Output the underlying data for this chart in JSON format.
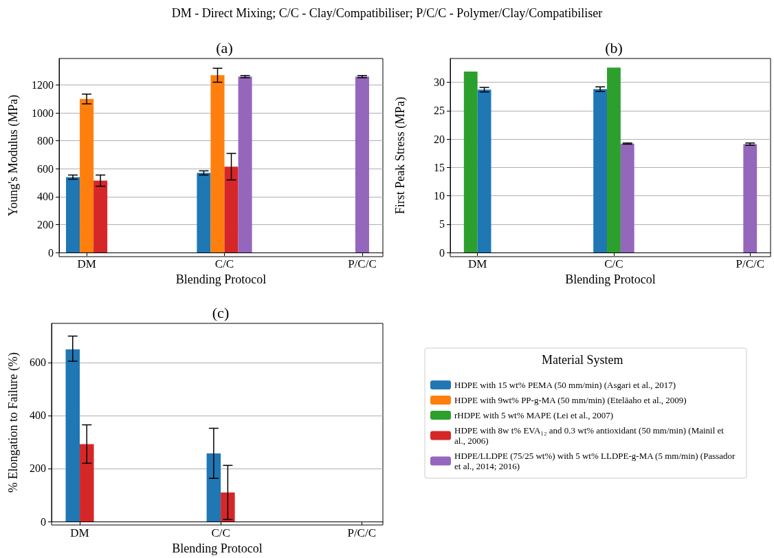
{
  "chart_data": [
    {
      "type": "bar",
      "title": "(a)",
      "annotations": [
        "DM - Direct Mixing; C/C - Clay/Compatibiliser; P/C/C - Polymer/Clay/Compatibiliser"
      ],
      "xlabel": "Blending Protocol",
      "ylabel": "Young's Modulus (MPa)",
      "categories": [
        "DM",
        "C/C",
        "P/C/C"
      ],
      "ylim": [
        0,
        1390
      ],
      "yticks": [
        0,
        200,
        400,
        600,
        800,
        1000,
        1200
      ],
      "grid": "y",
      "legend": false,
      "series": [
        {
          "color": "#1f77b4",
          "values": [
            540,
            570,
            null
          ],
          "errors": [
            15,
            15,
            null
          ]
        },
        {
          "color": "#ff7f0e",
          "values": [
            1100,
            1270,
            null
          ],
          "errors": [
            35,
            50,
            null
          ]
        },
        {
          "color": "#d62728",
          "values": [
            515,
            615,
            null
          ],
          "errors": [
            40,
            95,
            null
          ]
        },
        {
          "color": "#9467bd",
          "values": [
            null,
            1260,
            1260
          ],
          "errors": [
            null,
            8,
            8
          ]
        }
      ]
    },
    {
      "type": "bar",
      "title": "(b)",
      "xlabel": "Blending Protocol",
      "ylabel": "First Peak Stress (MPa)",
      "categories": [
        "DM",
        "C/C",
        "P/C/C"
      ],
      "ylim": [
        0,
        34.2
      ],
      "yticks": [
        0,
        5,
        10,
        15,
        20,
        25,
        30
      ],
      "grid": "y",
      "legend": false,
      "series": [
        {
          "color": "#2ca02c",
          "values": [
            31.9,
            null,
            null
          ]
        },
        {
          "color": "#1f77b4",
          "values": [
            28.7,
            28.8,
            null
          ],
          "errors": [
            0.4,
            0.4,
            null
          ]
        },
        {
          "color": "#2ca02c",
          "values": [
            null,
            32.6,
            null
          ]
        },
        {
          "color": "#9467bd",
          "values": [
            null,
            19.2,
            19.1
          ],
          "errors": [
            null,
            0.1,
            0.2
          ]
        }
      ]
    },
    {
      "type": "bar",
      "title": "(c)",
      "xlabel": "Blending Protocol",
      "ylabel": "% Elongation to Failure (%)",
      "categories": [
        "DM",
        "C/C",
        "P/C/C"
      ],
      "ylim": [
        0,
        748
      ],
      "yticks": [
        0,
        200,
        400,
        600
      ],
      "grid": "y",
      "legend": "right",
      "legend_title": "Material System",
      "series": [
        {
          "name": "HDPE with 15 wt% PEMA (50 mm/min) (Asgari et al., 2017)",
          "color": "#1f77b4",
          "values": [
            650,
            257,
            null
          ],
          "errors": [
            [
              605,
              700
            ],
            [
              163,
              352
            ],
            null
          ]
        },
        {
          "name": "HDPE with 9wt% PP-g-MA (50 mm/min) (Eteläaho et al., 2009)",
          "color": "#ff7f0e",
          "values": [
            null,
            null,
            null
          ]
        },
        {
          "name": "rHDPE with 5 wt% MAPE (Lei et al., 2007)",
          "color": "#2ca02c",
          "values": [
            null,
            null,
            null
          ]
        },
        {
          "name": "HDPE with 8w t% EVA₁₂ and 0.3 wt% antioxidant (50 mm/min) (Mainil et al., 2006)",
          "color": "#d62728",
          "values": [
            292,
            110,
            null
          ],
          "errors": [
            [
              220,
              365
            ],
            [
              8,
              212
            ],
            null
          ]
        },
        {
          "name": "HDPE/LLDPE (75/25 wt%) with 5 wt% LLDPE-g-MA (5 mm/min) (Passador et al., 2014; 2016)",
          "color": "#9467bd",
          "values": [
            null,
            null,
            null
          ]
        }
      ]
    }
  ]
}
